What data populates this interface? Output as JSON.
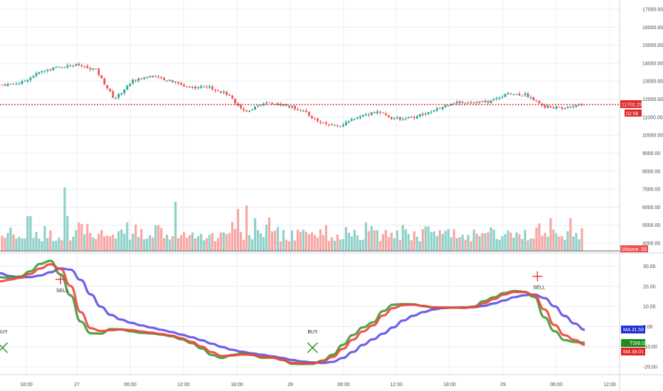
{
  "colors": {
    "up": "#26a69a",
    "down": "#ef5350",
    "up_volume": "#8fd1c9",
    "down_volume": "#f6a7a4",
    "grid": "#e9ecf2",
    "last_price_line": "#e0262a",
    "tsi": "#3f9a32",
    "ma1": "#f0443e",
    "ma2": "#5a50e6",
    "buy_marker": "#1e8c1e",
    "sell_marker": "#e8333a"
  },
  "chart_data": [
    {
      "type": "candlestick",
      "x_ticks": [
        "18:00",
        "27",
        "06:00",
        "12:00",
        "18:00",
        "28",
        "06:00",
        "12:00",
        "18:00",
        "29",
        "06:00",
        "12:00"
      ],
      "y_ticks": [
        "17000.00",
        "16000.00",
        "15000.00",
        "14000.00",
        "13000.00",
        "12000.00",
        "11000.00",
        "10000.00",
        "9000.00",
        "8000.00",
        "7000.00",
        "6000.00",
        "5000.00",
        "4000.00"
      ],
      "ylim": [
        3700,
        17400
      ],
      "last_price": "11702.25",
      "countdown": "02:56",
      "key_levels": [
        {
          "x": "16:30",
          "close": 12800
        },
        {
          "x": "20:00",
          "close": 12900
        },
        {
          "x": "22:00",
          "close": 13500
        },
        {
          "x": "00:00",
          "close": 13800
        },
        {
          "x": "01:00",
          "close": 13900
        },
        {
          "x": "01:30",
          "close": 13650
        },
        {
          "x": "02:00",
          "close": 12000
        },
        {
          "x": "04:00",
          "close": 13050
        },
        {
          "x": "05:00",
          "close": 13300
        },
        {
          "x": "06:00",
          "close": 13000
        },
        {
          "x": "07:00",
          "close": 12650
        },
        {
          "x": "09:00",
          "close": 12700
        },
        {
          "x": "11:00",
          "close": 12300
        },
        {
          "x": "13:00",
          "close": 11300
        },
        {
          "x": "14:00",
          "close": 11800
        },
        {
          "x": "16:00",
          "close": 11700
        },
        {
          "x": "18:00",
          "close": 11400
        },
        {
          "x": "20:00",
          "close": 10700
        },
        {
          "x": "23:00",
          "close": 10500
        },
        {
          "x": "02:00",
          "close": 11000
        },
        {
          "x": "05:00",
          "close": 11300
        },
        {
          "x": "08:00",
          "close": 10900
        },
        {
          "x": "11:00",
          "close": 11000
        },
        {
          "x": "13:00",
          "close": 11300
        },
        {
          "x": "16:00",
          "close": 11800
        },
        {
          "x": "19:00",
          "close": 11850
        },
        {
          "x": "22:00",
          "close": 11850
        },
        {
          "x": "01:00",
          "close": 12300
        },
        {
          "x": "05:00",
          "close": 12250
        },
        {
          "x": "06:00",
          "close": 11600
        },
        {
          "x": "08:00",
          "close": 11500
        },
        {
          "x": "09:00",
          "close": 11702
        }
      ]
    },
    {
      "type": "bar",
      "series": [
        {
          "name": "Volume",
          "value": "39"
        }
      ]
    },
    {
      "type": "line",
      "y_ticks": [
        "30.00",
        "20.00",
        "10.00",
        "0.00",
        "-10.00",
        "-20.00"
      ],
      "ylim": [
        -24,
        35
      ],
      "series": [
        {
          "name": "TSI",
          "last": "-8.02",
          "values": [
            24.5,
            24.3,
            24.9,
            27.5,
            31.2,
            32.7,
            26.0,
            15.5,
            2.5,
            -3.3,
            -3.5,
            -1.2,
            -1.4,
            -2.4,
            -3.1,
            -3.4,
            -4.0,
            -4.8,
            -6.3,
            -8.2,
            -10.9,
            -14.1,
            -15.6,
            -14.1,
            -13.4,
            -14.1,
            -15.5,
            -15.4,
            -16.6,
            -18.5,
            -18.6,
            -18.5,
            -16.9,
            -14.0,
            -9.1,
            -4.2,
            -0.4,
            2.1,
            7.7,
            10.9,
            11.2,
            11.1,
            10.1,
            9.5,
            9.5,
            9.5,
            9.3,
            10.0,
            12.7,
            14.6,
            16.7,
            17.7,
            17.3,
            14.7,
            4.6,
            -2.3,
            -6.7,
            -7.7,
            -8.0
          ]
        },
        {
          "name": "MA 1",
          "last": "-9.01",
          "values": [
            22.5,
            23.3,
            24.3,
            26.2,
            28.9,
            31.0,
            28.7,
            20.2,
            7.2,
            -0.8,
            -2.2,
            -1.8,
            -1.4,
            -1.7,
            -2.4,
            -3.0,
            -3.7,
            -4.5,
            -5.8,
            -7.6,
            -9.9,
            -12.7,
            -14.6,
            -14.4,
            -13.9,
            -13.9,
            -14.9,
            -15.4,
            -16.4,
            -18.0,
            -18.3,
            -18.3,
            -17.3,
            -15.1,
            -11.1,
            -6.5,
            -2.4,
            0.6,
            5.5,
            9.2,
            10.7,
            10.9,
            10.3,
            9.6,
            9.4,
            9.4,
            9.3,
            9.7,
            11.6,
            13.7,
            15.9,
            17.2,
            17.2,
            15.7,
            8.5,
            0.8,
            -4.3,
            -6.6,
            -9.01
          ]
        },
        {
          "name": "MA 2",
          "last": "-1.59",
          "values": [
            26.5,
            25.1,
            24.5,
            24.6,
            25.4,
            27.0,
            28.9,
            28.3,
            23.2,
            16.0,
            9.9,
            5.8,
            3.5,
            1.9,
            0.6,
            -0.5,
            -1.6,
            -2.7,
            -4.0,
            -5.3,
            -6.8,
            -8.5,
            -10.1,
            -11.5,
            -12.5,
            -13.3,
            -14.0,
            -14.8,
            -15.6,
            -16.6,
            -17.4,
            -17.8,
            -18.1,
            -17.5,
            -15.6,
            -12.6,
            -9.1,
            -6.3,
            -3.5,
            -0.4,
            3.0,
            5.4,
            7.2,
            8.5,
            9.2,
            9.5,
            9.6,
            9.6,
            10.3,
            11.5,
            13.0,
            14.6,
            15.6,
            15.9,
            14.2,
            10.1,
            5.3,
            1.5,
            -1.59
          ]
        }
      ],
      "signals": [
        {
          "label": "BUY",
          "x_index": 0.25,
          "y": -10.5
        },
        {
          "label": "SELL",
          "x_index": 6.0,
          "y": 23.5
        },
        {
          "label": "BUY",
          "x_index": 31.0,
          "y": -10.5
        },
        {
          "label": "SELL",
          "x_index": 53.3,
          "y": 25.0
        }
      ]
    }
  ]
}
